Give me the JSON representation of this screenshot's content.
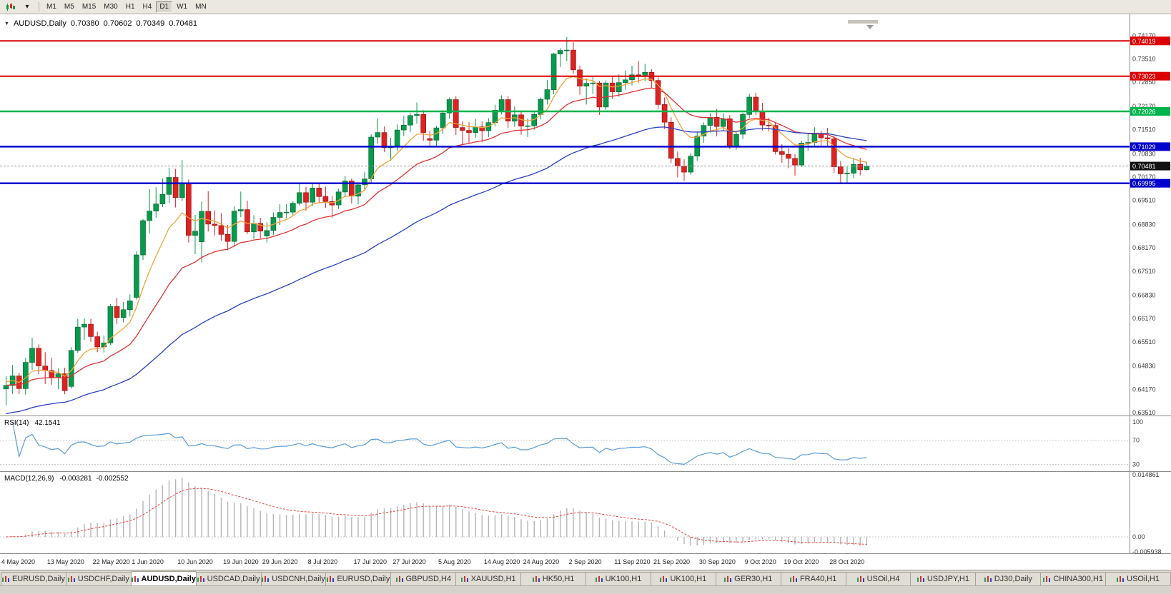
{
  "icons": {
    "collapse_arrow": "▼",
    "dropdown_caret": "▾",
    "toolbar_chart_icon": "candlestick-chart-icon",
    "tab_icon": "mini-chart-icon"
  },
  "toolbar": {
    "timeframes": [
      {
        "label": "M1",
        "active": false
      },
      {
        "label": "M5",
        "active": false
      },
      {
        "label": "M15",
        "active": false
      },
      {
        "label": "M30",
        "active": false
      },
      {
        "label": "H1",
        "active": false
      },
      {
        "label": "H4",
        "active": false
      },
      {
        "label": "D1",
        "active": true
      },
      {
        "label": "W1",
        "active": false
      },
      {
        "label": "MN",
        "active": false
      }
    ]
  },
  "quote_header": {
    "symbol": "AUDUSD,Daily",
    "open": "0.70380",
    "high": "0.70602",
    "low": "0.70349",
    "close": "0.70481"
  },
  "tabs": [
    {
      "label": "EURUSD,Daily",
      "active": false
    },
    {
      "label": "USDCHF,Daily",
      "active": false
    },
    {
      "label": "AUDUSD,Daily",
      "active": true
    },
    {
      "label": "USDCAD,Daily",
      "active": false
    },
    {
      "label": "USDCNH,Daily",
      "active": false
    },
    {
      "label": "EURUSD,Daily",
      "active": false
    },
    {
      "label": "GBPUSD,H4",
      "active": false
    },
    {
      "label": "XAUUSD,H1",
      "active": false
    },
    {
      "label": "HK50,H1",
      "active": false
    },
    {
      "label": "UK100,H1",
      "active": false
    },
    {
      "label": "UK100,H1",
      "active": false
    },
    {
      "label": "GER30,H1",
      "active": false
    },
    {
      "label": "FRA40,H1",
      "active": false
    },
    {
      "label": "USOil,H4",
      "active": false
    },
    {
      "label": "USDJPY,H1",
      "active": false
    },
    {
      "label": "DJ30,Daily",
      "active": false
    },
    {
      "label": "CHINA300,H1",
      "active": false
    },
    {
      "label": "USOil,H1",
      "active": false
    }
  ],
  "chart_data": {
    "type": "candlestick",
    "symbol": "AUDUSD",
    "timeframe": "Daily",
    "ylim": [
      0.6351,
      0.7457
    ],
    "y_axis_labels": [
      "0.74170",
      "0.73510",
      "0.72850",
      "0.72170",
      "0.71510",
      "0.70830",
      "0.70170",
      "0.69510",
      "0.68830",
      "0.68170",
      "0.67510",
      "0.66830",
      "0.66170",
      "0.65510",
      "0.64830",
      "0.64170",
      "0.63510"
    ],
    "dates": [
      {
        "label": "4 May 2020",
        "index": 0
      },
      {
        "label": "13 May 2020",
        "index": 7
      },
      {
        "label": "22 May 2020",
        "index": 14
      },
      {
        "label": "1 Jun 2020",
        "index": 20
      },
      {
        "label": "10 Jun 2020",
        "index": 27
      },
      {
        "label": "19 Jun 2020",
        "index": 34
      },
      {
        "label": "29 Jun 2020",
        "index": 40
      },
      {
        "label": "8 Jul 2020",
        "index": 47
      },
      {
        "label": "17 Jul 2020",
        "index": 54
      },
      {
        "label": "27 Jul 2020",
        "index": 60
      },
      {
        "label": "5 Aug 2020",
        "index": 67
      },
      {
        "label": "14 Aug 2020",
        "index": 74
      },
      {
        "label": "24 Aug 2020",
        "index": 80
      },
      {
        "label": "2 Sep 2020",
        "index": 87
      },
      {
        "label": "11 Sep 2020",
        "index": 94
      },
      {
        "label": "21 Sep 2020",
        "index": 100
      },
      {
        "label": "30 Sep 2020",
        "index": 107
      },
      {
        "label": "9 Oct 2020",
        "index": 114
      },
      {
        "label": "19 Oct 2020",
        "index": 120
      },
      {
        "label": "28 Oct 2020",
        "index": 127
      }
    ],
    "current_price": {
      "label": "0.70481",
      "value": 0.70481,
      "badge_color": "#111111"
    },
    "levels": [
      {
        "label": "0.74019",
        "value": 0.74019,
        "color": "#dd0000",
        "width": 2
      },
      {
        "label": "0.73023",
        "value": 0.73023,
        "color": "#dd0000",
        "width": 2
      },
      {
        "label": "0.72026",
        "value": 0.72026,
        "color": "#00b44c",
        "width": 2.5
      },
      {
        "label": "0.71029",
        "value": 0.71029,
        "color": "#0000cc",
        "width": 2.5
      },
      {
        "label": "0.69995",
        "value": 0.69995,
        "color": "#0000cc",
        "width": 2.5
      }
    ],
    "moving_averages": [
      {
        "period": 8,
        "color": "#f2a33c",
        "seed_offset": 0.001
      },
      {
        "period": 21,
        "color": "#dd3333",
        "seed_offset": 0
      },
      {
        "period": 55,
        "color": "#2b3fc0",
        "seed_offset": -0.008
      }
    ],
    "colors": {
      "bull": "#089a4c",
      "bull_border": "#0a5c30",
      "bear": "#dd2222",
      "bear_border": "#8f1010"
    },
    "rsi": {
      "label": "RSI(14)",
      "value": "42.1541",
      "period": 14,
      "color": "#5b9bd5",
      "axis_labels": [
        "100",
        "70",
        "30"
      ]
    },
    "macd": {
      "label": "MACD(12,26,9)",
      "value_main": "-0.003281",
      "value_signal": "-0.002552",
      "fast": 12,
      "slow": 26,
      "signal": 9,
      "axis_labels": [
        "0.014861",
        "0.00",
        "-0.005938"
      ],
      "histogram_color": "#b4b4b4",
      "signal_color": "#e04040"
    },
    "candles": [
      [
        0.6418,
        0.6454,
        0.6372,
        0.6428
      ],
      [
        0.6428,
        0.6486,
        0.6404,
        0.6455
      ],
      [
        0.6455,
        0.6464,
        0.6403,
        0.6419
      ],
      [
        0.6419,
        0.6506,
        0.6402,
        0.6493
      ],
      [
        0.6493,
        0.6562,
        0.6472,
        0.6533
      ],
      [
        0.6533,
        0.6544,
        0.646,
        0.6483
      ],
      [
        0.6483,
        0.6522,
        0.6432,
        0.647
      ],
      [
        0.647,
        0.6506,
        0.643,
        0.6451
      ],
      [
        0.6451,
        0.6476,
        0.6417,
        0.6461
      ],
      [
        0.6461,
        0.6478,
        0.6403,
        0.6413
      ],
      [
        0.6425,
        0.6536,
        0.6419,
        0.6527
      ],
      [
        0.6527,
        0.6616,
        0.652,
        0.6593
      ],
      [
        0.6593,
        0.6617,
        0.6557,
        0.6601
      ],
      [
        0.6601,
        0.6616,
        0.6551,
        0.6566
      ],
      [
        0.6566,
        0.658,
        0.6522,
        0.6537
      ],
      [
        0.6537,
        0.6569,
        0.6521,
        0.6548
      ],
      [
        0.6548,
        0.6658,
        0.6542,
        0.6651
      ],
      [
        0.6651,
        0.6675,
        0.6601,
        0.662
      ],
      [
        0.662,
        0.6664,
        0.6606,
        0.6642
      ],
      [
        0.6642,
        0.6685,
        0.6623,
        0.6667
      ],
      [
        0.6677,
        0.6807,
        0.6671,
        0.6797
      ],
      [
        0.6797,
        0.6899,
        0.6783,
        0.6894
      ],
      [
        0.6894,
        0.6983,
        0.6857,
        0.6921
      ],
      [
        0.6921,
        0.6988,
        0.6902,
        0.6941
      ],
      [
        0.6941,
        0.7013,
        0.6932,
        0.6968
      ],
      [
        0.6968,
        0.7043,
        0.6943,
        0.7016
      ],
      [
        0.7016,
        0.704,
        0.6931,
        0.6959
      ],
      [
        0.6959,
        0.7065,
        0.695,
        0.6999
      ],
      [
        0.6999,
        0.701,
        0.6832,
        0.6852
      ],
      [
        0.6852,
        0.691,
        0.6799,
        0.6864
      ],
      [
        0.6834,
        0.6948,
        0.6776,
        0.692
      ],
      [
        0.692,
        0.6977,
        0.6863,
        0.6884
      ],
      [
        0.6884,
        0.6923,
        0.6852,
        0.688
      ],
      [
        0.688,
        0.6915,
        0.6837,
        0.6855
      ],
      [
        0.6855,
        0.6882,
        0.681,
        0.6835
      ],
      [
        0.6835,
        0.6934,
        0.682,
        0.6921
      ],
      [
        0.6921,
        0.6976,
        0.6904,
        0.6925
      ],
      [
        0.6925,
        0.695,
        0.6856,
        0.6862
      ],
      [
        0.6862,
        0.6909,
        0.6842,
        0.6886
      ],
      [
        0.6886,
        0.6902,
        0.6844,
        0.6864
      ],
      [
        0.685,
        0.6889,
        0.6832,
        0.6866
      ],
      [
        0.6866,
        0.6917,
        0.6853,
        0.6903
      ],
      [
        0.6903,
        0.694,
        0.6882,
        0.6917
      ],
      [
        0.6917,
        0.694,
        0.6901,
        0.6918
      ],
      [
        0.6918,
        0.6949,
        0.6909,
        0.6943
      ],
      [
        0.6943,
        0.6998,
        0.6937,
        0.6973
      ],
      [
        0.6973,
        0.6989,
        0.6922,
        0.6946
      ],
      [
        0.6946,
        0.7,
        0.6935,
        0.6986
      ],
      [
        0.6986,
        0.7,
        0.6943,
        0.6962
      ],
      [
        0.6962,
        0.699,
        0.693,
        0.6948
      ],
      [
        0.6948,
        0.6964,
        0.6902,
        0.6938
      ],
      [
        0.6938,
        0.6984,
        0.6927,
        0.6975
      ],
      [
        0.6975,
        0.702,
        0.696,
        0.7006
      ],
      [
        0.7006,
        0.7013,
        0.6942,
        0.6963
      ],
      [
        0.6963,
        0.7002,
        0.694,
        0.6995
      ],
      [
        0.6995,
        0.7032,
        0.6981,
        0.7012
      ],
      [
        0.7012,
        0.7138,
        0.7001,
        0.713
      ],
      [
        0.713,
        0.7183,
        0.7111,
        0.7143
      ],
      [
        0.7143,
        0.716,
        0.7088,
        0.71
      ],
      [
        0.71,
        0.7128,
        0.7063,
        0.7105
      ],
      [
        0.7105,
        0.7166,
        0.709,
        0.715
      ],
      [
        0.715,
        0.719,
        0.7133,
        0.7164
      ],
      [
        0.7164,
        0.7198,
        0.7144,
        0.7191
      ],
      [
        0.7191,
        0.7228,
        0.7168,
        0.7194
      ],
      [
        0.7194,
        0.7206,
        0.712,
        0.7143
      ],
      [
        0.7126,
        0.7148,
        0.7102,
        0.7121
      ],
      [
        0.7121,
        0.7162,
        0.7104,
        0.7156
      ],
      [
        0.7156,
        0.7206,
        0.7139,
        0.7198
      ],
      [
        0.7198,
        0.7242,
        0.7182,
        0.7236
      ],
      [
        0.7236,
        0.7245,
        0.7136,
        0.7157
      ],
      [
        0.7157,
        0.7175,
        0.7109,
        0.7149
      ],
      [
        0.7149,
        0.7172,
        0.7113,
        0.7143
      ],
      [
        0.7143,
        0.7181,
        0.7128,
        0.7159
      ],
      [
        0.7159,
        0.7174,
        0.7115,
        0.7148
      ],
      [
        0.7148,
        0.7183,
        0.713,
        0.7171
      ],
      [
        0.7171,
        0.7222,
        0.716,
        0.7206
      ],
      [
        0.7206,
        0.7248,
        0.7194,
        0.7236
      ],
      [
        0.7236,
        0.7246,
        0.7156,
        0.7175
      ],
      [
        0.7175,
        0.7217,
        0.7159,
        0.7193
      ],
      [
        0.7193,
        0.7205,
        0.7137,
        0.7161
      ],
      [
        0.7161,
        0.7183,
        0.713,
        0.7162
      ],
      [
        0.7162,
        0.7203,
        0.7151,
        0.7194
      ],
      [
        0.7194,
        0.7242,
        0.718,
        0.7237
      ],
      [
        0.7237,
        0.7292,
        0.7222,
        0.7264
      ],
      [
        0.7264,
        0.7368,
        0.7251,
        0.7365
      ],
      [
        0.7365,
        0.7381,
        0.7328,
        0.7375
      ],
      [
        0.7375,
        0.7413,
        0.7345,
        0.7376
      ],
      [
        0.7376,
        0.7398,
        0.7309,
        0.732
      ],
      [
        0.732,
        0.7332,
        0.725,
        0.7274
      ],
      [
        0.7274,
        0.7296,
        0.7222,
        0.7282
      ],
      [
        0.7282,
        0.73,
        0.7252,
        0.7283
      ],
      [
        0.7283,
        0.7289,
        0.7193,
        0.7215
      ],
      [
        0.7215,
        0.729,
        0.7207,
        0.7283
      ],
      [
        0.7283,
        0.7302,
        0.7238,
        0.7258
      ],
      [
        0.7258,
        0.7307,
        0.7244,
        0.7284
      ],
      [
        0.7284,
        0.7318,
        0.7264,
        0.7292
      ],
      [
        0.7292,
        0.7332,
        0.7276,
        0.7306
      ],
      [
        0.7306,
        0.7345,
        0.7284,
        0.7305
      ],
      [
        0.7305,
        0.7337,
        0.7288,
        0.7313
      ],
      [
        0.7313,
        0.7322,
        0.7268,
        0.729
      ],
      [
        0.729,
        0.7299,
        0.7209,
        0.7222
      ],
      [
        0.7222,
        0.7242,
        0.7153,
        0.7172
      ],
      [
        0.7172,
        0.7186,
        0.7057,
        0.707
      ],
      [
        0.707,
        0.7089,
        0.7016,
        0.7048
      ],
      [
        0.7048,
        0.7067,
        0.7006,
        0.7031
      ],
      [
        0.7031,
        0.7085,
        0.7024,
        0.7076
      ],
      [
        0.7076,
        0.7146,
        0.7063,
        0.7133
      ],
      [
        0.7133,
        0.7172,
        0.7114,
        0.7163
      ],
      [
        0.7163,
        0.7197,
        0.7143,
        0.7186
      ],
      [
        0.7186,
        0.7209,
        0.7132,
        0.716
      ],
      [
        0.716,
        0.7197,
        0.7147,
        0.7182
      ],
      [
        0.7182,
        0.7192,
        0.7096,
        0.7105
      ],
      [
        0.7105,
        0.7145,
        0.7094,
        0.7138
      ],
      [
        0.7138,
        0.7199,
        0.7125,
        0.7194
      ],
      [
        0.7194,
        0.7252,
        0.7184,
        0.7243
      ],
      [
        0.7243,
        0.7255,
        0.7192,
        0.7203
      ],
      [
        0.7203,
        0.7227,
        0.7149,
        0.7164
      ],
      [
        0.7164,
        0.7185,
        0.7146,
        0.7163
      ],
      [
        0.7163,
        0.7172,
        0.7081,
        0.7089
      ],
      [
        0.7089,
        0.711,
        0.7057,
        0.7081
      ],
      [
        0.7081,
        0.7099,
        0.7042,
        0.707
      ],
      [
        0.707,
        0.7082,
        0.7021,
        0.7051
      ],
      [
        0.7051,
        0.712,
        0.7045,
        0.7113
      ],
      [
        0.7113,
        0.7139,
        0.7091,
        0.7115
      ],
      [
        0.7115,
        0.7158,
        0.7104,
        0.7139
      ],
      [
        0.7139,
        0.7148,
        0.7105,
        0.7128
      ],
      [
        0.7128,
        0.7156,
        0.7103,
        0.7125
      ],
      [
        0.7125,
        0.7132,
        0.7029,
        0.7046
      ],
      [
        0.7046,
        0.7062,
        0.6997,
        0.7026
      ],
      [
        0.7026,
        0.7047,
        0.7002,
        0.7028
      ],
      [
        0.7028,
        0.7071,
        0.7013,
        0.7053
      ],
      [
        0.7053,
        0.7071,
        0.7022,
        0.7038
      ],
      [
        0.7038,
        0.70602,
        0.70349,
        0.70481
      ]
    ]
  }
}
